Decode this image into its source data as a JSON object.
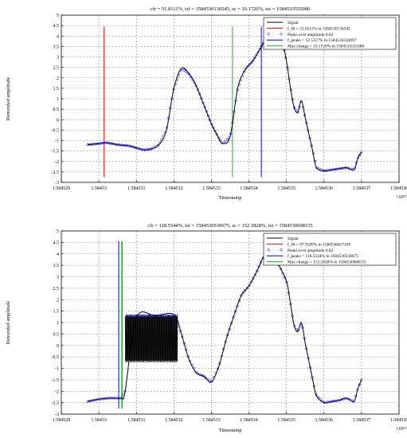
{
  "chart_data": [
    {
      "type": "line",
      "title": "cfr = 51.8111%, tsf = 1584530136545, sc = 10.1720%, tss = 1584533555080",
      "xlabel": "Timestamp",
      "ylabel": "Detrended amplitude",
      "x_exponent": "×10¹²",
      "xlim": [
        1.584529,
        1.584538
      ],
      "ylim": [
        -3,
        5
      ],
      "grid": true,
      "legend_position": "top-right",
      "x_ticks": [
        1.584529,
        1.58453,
        1.584531,
        1.584532,
        1.584533,
        1.584534,
        1.584535,
        1.584536,
        1.584537,
        1.584538
      ],
      "x_tick_labels": [
        "1.584529",
        "1.58453",
        "1.584531",
        "1.584532",
        "1.584533",
        "1.584534",
        "1.584535",
        "1.584536",
        "1.584537",
        "1.584538"
      ],
      "y_ticks": [
        -3,
        -2.5,
        -2,
        -1.5,
        -1,
        -0.5,
        0,
        0.5,
        1,
        1.5,
        2,
        2.5,
        3,
        3.5,
        4,
        4.5,
        5
      ],
      "y_tick_labels": [
        "-3",
        "-2.5",
        "-2",
        "-1.5",
        "-1",
        "-0.5",
        "0",
        "0.5",
        "1",
        "1.5",
        "2",
        "2.5",
        "3",
        "3.5",
        "4",
        "4.5",
        "5"
      ],
      "series": [
        {
          "name": "Signal",
          "color": "#000000",
          "x": [
            1.5845297,
            1.58453,
            1.5845302,
            1.5845305,
            1.5845308,
            1.584531,
            1.5845312,
            1.5845314,
            1.5845316,
            1.5845318,
            1.584532,
            1.5845322,
            1.5845324,
            1.5845326,
            1.5845328,
            1.584533,
            1.5845332,
            1.5845333,
            1.5845335,
            1.5845337,
            1.5845339,
            1.5845341,
            1.5845343,
            1.5845345,
            1.5845347,
            1.5845349,
            1.584535,
            1.5845351,
            1.5845352,
            1.5845353,
            1.5845354,
            1.5845355,
            1.5845356,
            1.5845357,
            1.5845358,
            1.584536,
            1.5845362,
            1.5845364,
            1.5845366,
            1.5845368,
            1.5845369,
            1.584537
          ],
          "y": [
            -1.2,
            -1.15,
            -1.1,
            -1.2,
            -1.25,
            -1.35,
            -1.45,
            -1.4,
            -1.2,
            -0.5,
            1.5,
            2.45,
            2.2,
            1.6,
            0.7,
            -0.2,
            -0.9,
            -1.15,
            -0.8,
            1.5,
            2.4,
            2.8,
            3.4,
            4.0,
            4.35,
            3.6,
            2.8,
            1.6,
            0.6,
            0.35,
            0.9,
            0.1,
            -0.7,
            -1.5,
            -2.3,
            -2.45,
            -2.4,
            -2.35,
            -2.3,
            -2.4,
            -1.85,
            -1.55
          ]
        },
        {
          "name": "f_fft = 51.8111% in 1584530136545",
          "color": "#ff0000",
          "vline_x": 1.58453014,
          "ymin": -2.75,
          "ymax": 4.45
        },
        {
          "name": "Peaks over amplitude 0.02",
          "color": "#0000ff",
          "marker": "circle",
          "x_range": [
            1.5845297,
            1.584537
          ],
          "count": 160
        },
        {
          "name": "f_peaks = 12.5317% in 1584534334997",
          "color": "#0000ff",
          "vline_x": 1.58453433,
          "ymin": -2.75,
          "ymax": 4.45
        },
        {
          "name": "Max change = 10.1720% in 1584533555080",
          "color": "#00cc00",
          "vline_x": 1.58453356,
          "ymin": -2.75,
          "ymax": 4.45
        }
      ]
    },
    {
      "type": "line",
      "title": "cfr = 118.5544%, tsf = 1584530530675, sc = 152.1828%, tss = 1584530608155",
      "xlabel": "Timestamp",
      "ylabel": "Detrended amplitude",
      "x_exponent": "×10¹²",
      "xlim": [
        1.584529,
        1.584538
      ],
      "ylim": [
        -3,
        5
      ],
      "grid": true,
      "legend_position": "top-right",
      "x_ticks": [
        1.584529,
        1.58453,
        1.584531,
        1.584532,
        1.584533,
        1.584534,
        1.584535,
        1.584536,
        1.584537,
        1.584538
      ],
      "x_tick_labels": [
        "1.584529",
        "1.58453",
        "1.584531",
        "1.584532",
        "1.584533",
        "1.584534",
        "1.584535",
        "1.584536",
        "1.584537",
        "1.584538"
      ],
      "y_ticks": [
        -3,
        -2.5,
        -2,
        -1.5,
        -1,
        -0.5,
        0,
        0.5,
        1,
        1.5,
        2,
        2.5,
        3,
        3.5,
        4,
        4.5,
        5
      ],
      "y_tick_labels": [
        "-3",
        "-2.5",
        "-2",
        "-1.5",
        "-1",
        "-0.5",
        "0",
        "0.5",
        "1",
        "1.5",
        "2",
        "2.5",
        "3",
        "3.5",
        "4",
        "4.5",
        "5"
      ],
      "series": [
        {
          "name": "Signal",
          "color": "#000000",
          "x": [
            1.5845297,
            1.58453,
            1.5845303,
            1.5845306,
            1.5845307,
            1.584531,
            1.5845315,
            1.584532,
            1.5845322,
            1.5845324,
            1.5845326,
            1.5845328,
            1.584533,
            1.5845332,
            1.5845334,
            1.5845336,
            1.5845338,
            1.584534,
            1.5845342,
            1.5845344,
            1.5845346,
            1.5845348,
            1.584535,
            1.5845351,
            1.5845352,
            1.5845353,
            1.5845354,
            1.5845355,
            1.5845356,
            1.5845357,
            1.5845358,
            1.584536,
            1.5845362,
            1.5845364,
            1.5845366,
            1.5845368,
            1.5845369,
            1.584537
          ],
          "y": [
            -2.45,
            -2.35,
            -2.3,
            -2.3,
            -2.0,
            1.2,
            1.3,
            1.35,
            0.5,
            -0.6,
            -1.2,
            -1.35,
            -1.6,
            -0.9,
            0.3,
            1.3,
            2.2,
            2.6,
            3.2,
            3.9,
            4.05,
            3.5,
            2.8,
            1.9,
            0.9,
            0.6,
            1.0,
            0.1,
            -0.7,
            -1.5,
            -2.2,
            -2.5,
            -2.45,
            -2.4,
            -2.3,
            -2.45,
            -1.9,
            -1.5
          ]
        },
        {
          "name": "f_fft = 97.9189% in 1584530617199",
          "color": "#ff0000",
          "vline_x": 1.58453062,
          "ymin": -2.75,
          "ymax": 4.55
        },
        {
          "name": "Peaks over amplitude 0.02",
          "color": "#0000ff",
          "marker": "circle",
          "x_range": [
            1.5845297,
            1.584537
          ],
          "count": 140
        },
        {
          "name": "f_peaks = 118.5544% in 1584530530675",
          "color": "#0000ff",
          "vline_x": 1.58453053,
          "ymin": -2.75,
          "ymax": 4.55
        },
        {
          "name": "Max change = 152.1828% in 1584530608155",
          "color": "#00cc00",
          "vline_x": 1.58453061,
          "ymin": -2.75,
          "ymax": 4.55
        }
      ],
      "oscillation_band": {
        "x_range": [
          1.5845307,
          1.5845321
        ],
        "y_range": [
          -0.7,
          1.3
        ],
        "color": "#000000"
      }
    }
  ]
}
